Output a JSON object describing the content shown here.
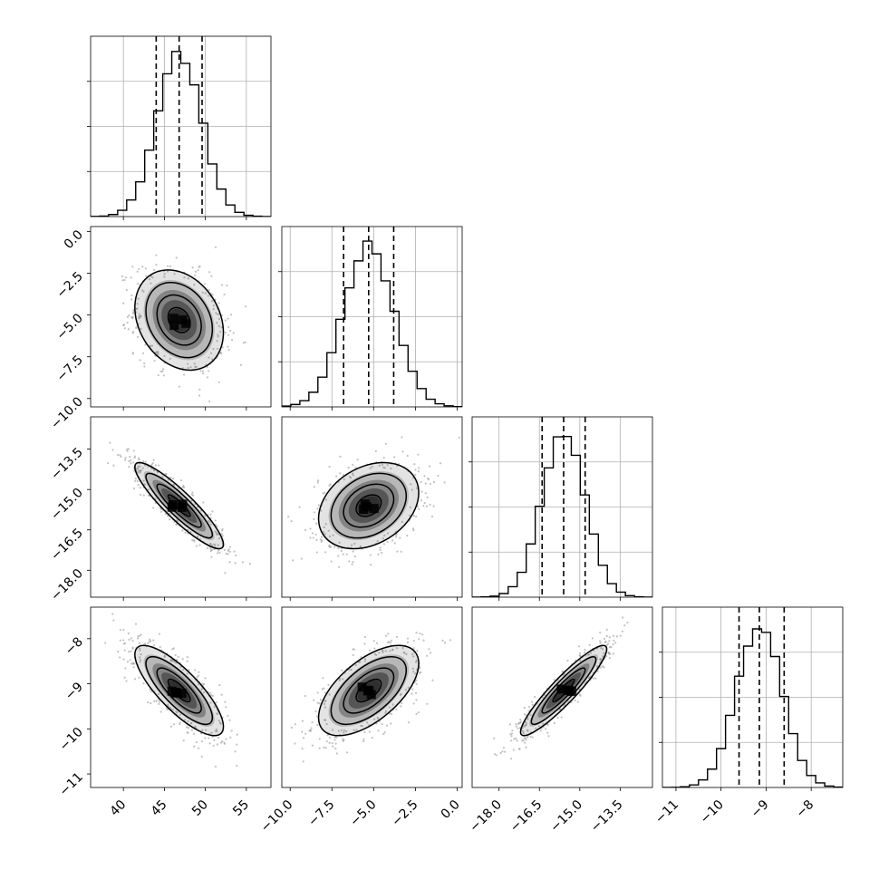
{
  "colors": {
    "ink": "#000000",
    "grid": "#b0b0b0",
    "scatter": "#9a9a9a"
  },
  "chart_data": {
    "type": "corner",
    "parameters": [
      {
        "range": [
          36,
          58
        ],
        "ticks": [
          {
            "v": 40,
            "t": "40"
          },
          {
            "v": 45,
            "t": "45"
          },
          {
            "v": 50,
            "t": "50"
          },
          {
            "v": 55,
            "t": "55"
          }
        ],
        "quantiles": [
          44.0,
          46.8,
          49.6
        ],
        "median": 46.8,
        "sigma": 2.7
      },
      {
        "range": [
          -10.5,
          0.3
        ],
        "ticks": [
          {
            "v": -10,
            "t": "−10.0"
          },
          {
            "v": -7.5,
            "t": "−7.5"
          },
          {
            "v": -5,
            "t": "−5.0"
          },
          {
            "v": -2.5,
            "t": "−2.5"
          },
          {
            "v": 0,
            "t": "0.0"
          }
        ],
        "quantiles": [
          -6.8,
          -5.3,
          -3.8
        ],
        "median": -5.3,
        "sigma": 1.5
      },
      {
        "range": [
          -19,
          -12.3
        ],
        "ticks": [
          {
            "v": -18,
            "t": "−18.0"
          },
          {
            "v": -16.5,
            "t": "−16.5"
          },
          {
            "v": -15,
            "t": "−15.0"
          },
          {
            "v": -13.5,
            "t": "−13.5"
          }
        ],
        "quantiles": [
          -16.4,
          -15.6,
          -14.8
        ],
        "median": -15.6,
        "sigma": 0.8
      },
      {
        "range": [
          -11.3,
          -7.3
        ],
        "ticks": [
          {
            "v": -11,
            "t": "−11"
          },
          {
            "v": -10,
            "t": "−10"
          },
          {
            "v": -9,
            "t": "−9"
          },
          {
            "v": -8,
            "t": "−8"
          }
        ],
        "quantiles": [
          -9.6,
          -9.15,
          -8.6
        ],
        "median": -9.15,
        "sigma": 0.5
      }
    ],
    "correlations": [
      {
        "row": 1,
        "col": 0,
        "rho": -0.25
      },
      {
        "row": 2,
        "col": 0,
        "rho": -0.9
      },
      {
        "row": 2,
        "col": 1,
        "rho": 0.3
      },
      {
        "row": 3,
        "col": 0,
        "rho": -0.8
      },
      {
        "row": 3,
        "col": 1,
        "rho": 0.6
      },
      {
        "row": 3,
        "col": 2,
        "rho": 0.92
      }
    ],
    "histogram_levels": {
      "label_ticks_hidden": true
    },
    "contour_levels_sigma": [
      0.5,
      1.0,
      1.5,
      2.0
    ],
    "quantile_lines": "dashed",
    "grid": true,
    "scatter_points": true
  }
}
